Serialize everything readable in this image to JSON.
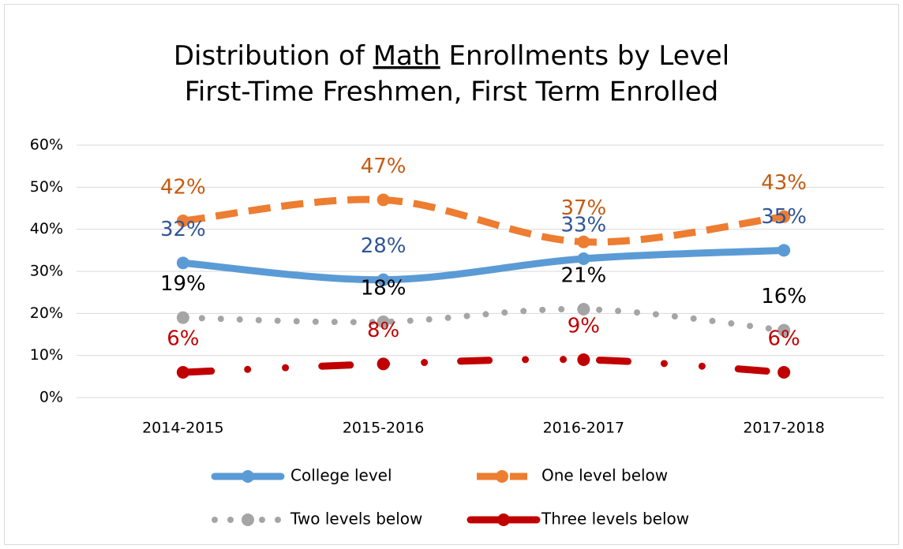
{
  "chart_data": {
    "type": "line",
    "title_parts": [
      "Distribution of ",
      "Math",
      " Enrollments by Level"
    ],
    "subtitle": "First-Time Freshmen, First Term Enrolled",
    "categories": [
      "2014-2015",
      "2015-2016",
      "2016-2017",
      "2017-2018"
    ],
    "series": [
      {
        "name": "College level",
        "color": "#5b9bd5",
        "label_color": "#2f5597",
        "style": "solid",
        "values": [
          32,
          28,
          33,
          35
        ],
        "value_labels": [
          "32%",
          "28%",
          "33%",
          "35%"
        ]
      },
      {
        "name": "One level below",
        "color": "#ed7d31",
        "label_color": "#c55a11",
        "style": "dash",
        "values": [
          42,
          47,
          37,
          43
        ],
        "value_labels": [
          "42%",
          "47%",
          "37%",
          "43%"
        ]
      },
      {
        "name": "Two levels below",
        "color": "#a5a5a5",
        "label_color": "#000000",
        "style": "dot",
        "values": [
          19,
          18,
          21,
          16
        ],
        "value_labels": [
          "19%",
          "18%",
          "21%",
          "16%"
        ]
      },
      {
        "name": "Three levels below",
        "color": "#c00000",
        "label_color": "#c00000",
        "style": "dashdot",
        "values": [
          6,
          8,
          9,
          6
        ],
        "value_labels": [
          "6%",
          "8%",
          "9%",
          "6%"
        ]
      }
    ],
    "ylim": [
      0,
      60
    ],
    "yticks": [
      {
        "value": 0,
        "label": "0%"
      },
      {
        "value": 10,
        "label": "10%"
      },
      {
        "value": 20,
        "label": "20%"
      },
      {
        "value": 30,
        "label": "30%"
      },
      {
        "value": 40,
        "label": "40%"
      },
      {
        "value": 50,
        "label": "50%"
      },
      {
        "value": 60,
        "label": "60%"
      }
    ],
    "grid": true,
    "legend": "bottom"
  }
}
